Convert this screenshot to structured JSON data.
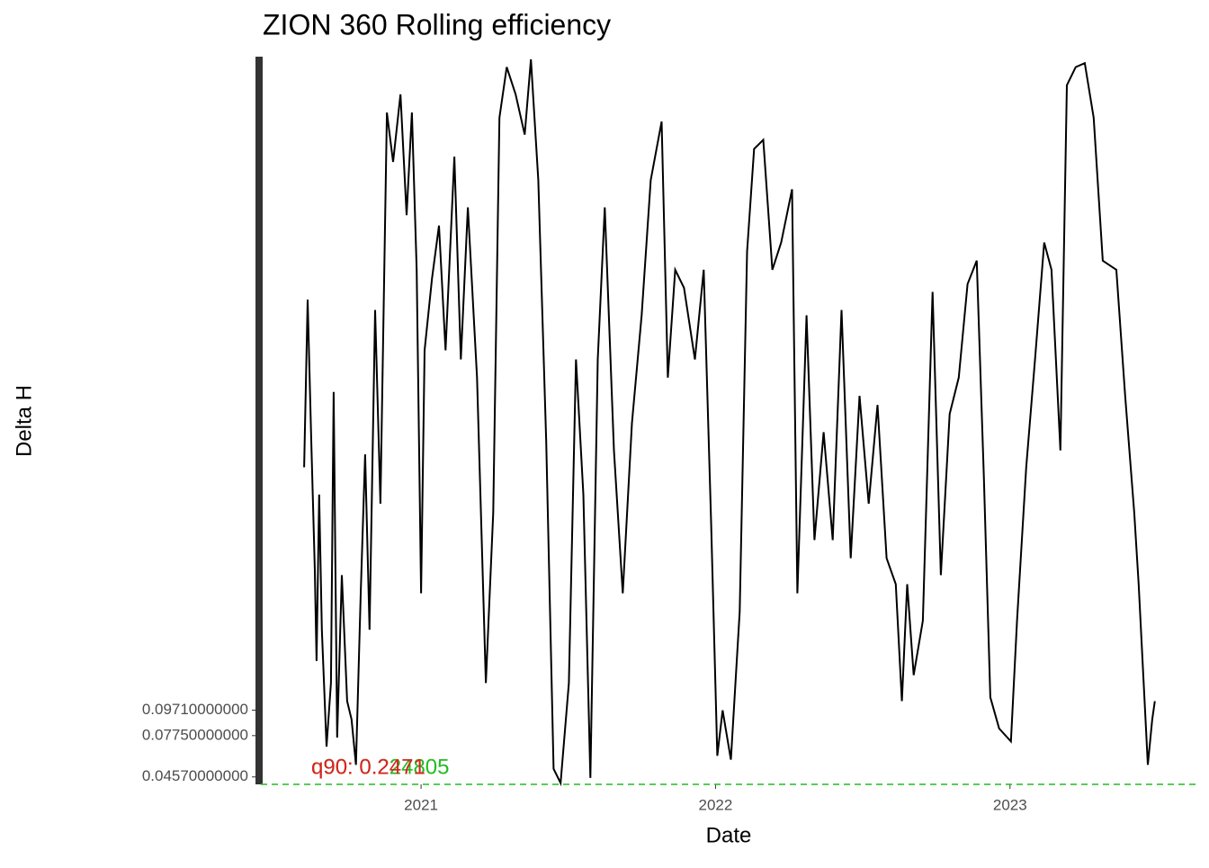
{
  "chart_data": {
    "type": "line",
    "title": "ZION 360 Rolling efficiency",
    "x_label": "Date",
    "y_label": "Delta H",
    "x": [
      2020.603,
      2020.615,
      2020.627,
      2020.639,
      2020.645,
      2020.654,
      2020.663,
      2020.679,
      2020.694,
      2020.703,
      2020.715,
      2020.731,
      2020.749,
      2020.764,
      2020.779,
      2020.795,
      2020.81,
      2020.825,
      2020.844,
      2020.862,
      2020.884,
      2020.905,
      2020.93,
      2020.951,
      2020.969,
      2020.985,
      2021.0,
      2021.012,
      2021.037,
      2021.061,
      2021.083,
      2021.113,
      2021.135,
      2021.159,
      2021.19,
      2021.22,
      2021.245,
      2021.266,
      2021.291,
      2021.321,
      2021.352,
      2021.373,
      2021.398,
      2021.425,
      2021.45,
      2021.474,
      2021.502,
      2021.526,
      2021.551,
      2021.575,
      2021.6,
      2021.624,
      2021.655,
      2021.685,
      2021.716,
      2021.749,
      2021.78,
      2021.817,
      2021.838,
      2021.863,
      2021.893,
      2021.93,
      2021.96,
      2021.985,
      2022.006,
      2022.024,
      2022.052,
      2022.082,
      2022.107,
      2022.131,
      2022.162,
      2022.193,
      2022.223,
      2022.26,
      2022.278,
      2022.309,
      2022.336,
      2022.367,
      2022.398,
      2022.428,
      2022.459,
      2022.489,
      2022.52,
      2022.55,
      2022.581,
      2022.612,
      2022.633,
      2022.651,
      2022.673,
      2022.704,
      2022.737,
      2022.765,
      2022.795,
      2022.826,
      2022.856,
      2022.887,
      2022.911,
      2022.933,
      2022.963,
      2023.003,
      2023.024,
      2023.055,
      2023.085,
      2023.116,
      2023.141,
      2023.171,
      2023.193,
      2023.223,
      2023.254,
      2023.284,
      2023.315,
      2023.361,
      2023.391,
      2023.422,
      2023.437,
      2023.468,
      2023.483,
      2023.492
    ],
    "series": [
      {
        "color": "#000000",
        "values": [
          0.284,
          0.413,
          0.305,
          0.207,
          0.135,
          0.263,
          0.159,
          0.069,
          0.118,
          0.342,
          0.076,
          0.201,
          0.104,
          0.09,
          0.055,
          0.187,
          0.294,
          0.159,
          0.405,
          0.256,
          0.557,
          0.519,
          0.571,
          0.478,
          0.557,
          0.436,
          0.187,
          0.374,
          0.429,
          0.47,
          0.374,
          0.523,
          0.367,
          0.484,
          0.353,
          0.118,
          0.249,
          0.553,
          0.592,
          0.571,
          0.54,
          0.598,
          0.505,
          0.304,
          0.052,
          0.041,
          0.118,
          0.367,
          0.263,
          0.045,
          0.367,
          0.484,
          0.297,
          0.187,
          0.318,
          0.401,
          0.505,
          0.55,
          0.353,
          0.436,
          0.422,
          0.367,
          0.436,
          0.242,
          0.062,
          0.097,
          0.059,
          0.173,
          0.45,
          0.529,
          0.536,
          0.436,
          0.457,
          0.498,
          0.187,
          0.401,
          0.228,
          0.311,
          0.228,
          0.405,
          0.214,
          0.339,
          0.256,
          0.332,
          0.214,
          0.194,
          0.104,
          0.194,
          0.124,
          0.166,
          0.419,
          0.201,
          0.325,
          0.353,
          0.425,
          0.443,
          0.277,
          0.107,
          0.083,
          0.073,
          0.166,
          0.284,
          0.367,
          0.457,
          0.436,
          0.297,
          0.578,
          0.592,
          0.595,
          0.553,
          0.443,
          0.436,
          0.339,
          0.249,
          0.194,
          0.055,
          0.09,
          0.104
        ]
      }
    ],
    "xlim": [
      2020.456,
      2023.633
    ],
    "xticks": [
      2021,
      2022,
      2023
    ],
    "ylim": [
      0.04,
      0.6
    ],
    "yticks": [
      {
        "value": 0.0457,
        "label": "0.04570000000"
      },
      {
        "value": 0.0775,
        "label": "0.07750000000"
      },
      {
        "value": 0.0971,
        "label": "0.09710000000"
      }
    ],
    "annotations": [
      {
        "text": "q90: 0.224805",
        "color": "#22bb22"
      },
      {
        "text": "q90: 0.2471",
        "color": "#dd2222"
      }
    ],
    "grid": false
  }
}
